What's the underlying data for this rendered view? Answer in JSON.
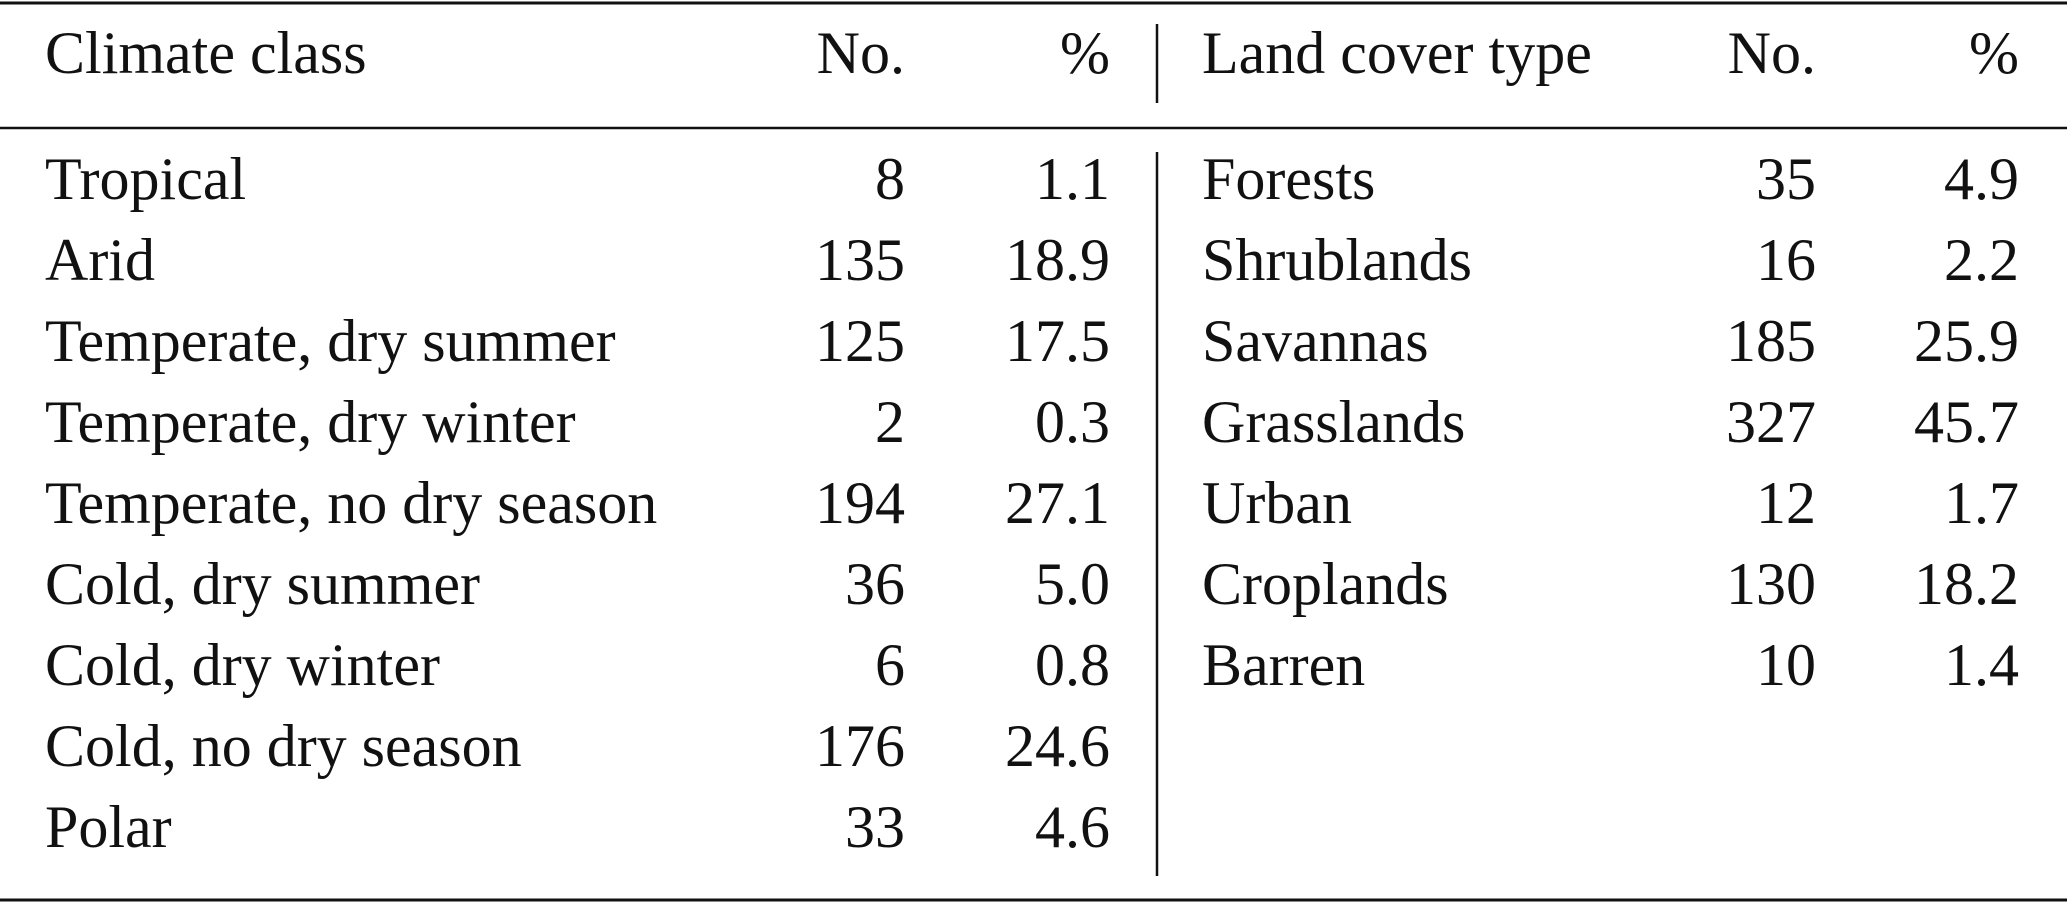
{
  "left": {
    "header": [
      "Climate class",
      "No.",
      "%"
    ],
    "rows": [
      [
        "Tropical",
        "8",
        "1.1"
      ],
      [
        "Arid",
        "135",
        "18.9"
      ],
      [
        "Temperate, dry summer",
        "125",
        "17.5"
      ],
      [
        "Temperate, dry winter",
        "2",
        "0.3"
      ],
      [
        "Temperate, no dry season",
        "194",
        "27.1"
      ],
      [
        "Cold, dry summer",
        "36",
        "5.0"
      ],
      [
        "Cold, dry winter",
        "6",
        "0.8"
      ],
      [
        "Cold, no dry season",
        "176",
        "24.6"
      ],
      [
        "Polar",
        "33",
        "4.6"
      ]
    ]
  },
  "right": {
    "header": [
      "Land cover type",
      "No.",
      "%"
    ],
    "rows": [
      [
        "Forests",
        "35",
        "4.9"
      ],
      [
        "Shrublands",
        "16",
        "2.2"
      ],
      [
        "Savannas",
        "185",
        "25.9"
      ],
      [
        "Grasslands",
        "327",
        "45.7"
      ],
      [
        "Urban",
        "12",
        "1.7"
      ],
      [
        "Croplands",
        "130",
        "18.2"
      ],
      [
        "Barren",
        "10",
        "1.4"
      ]
    ]
  }
}
